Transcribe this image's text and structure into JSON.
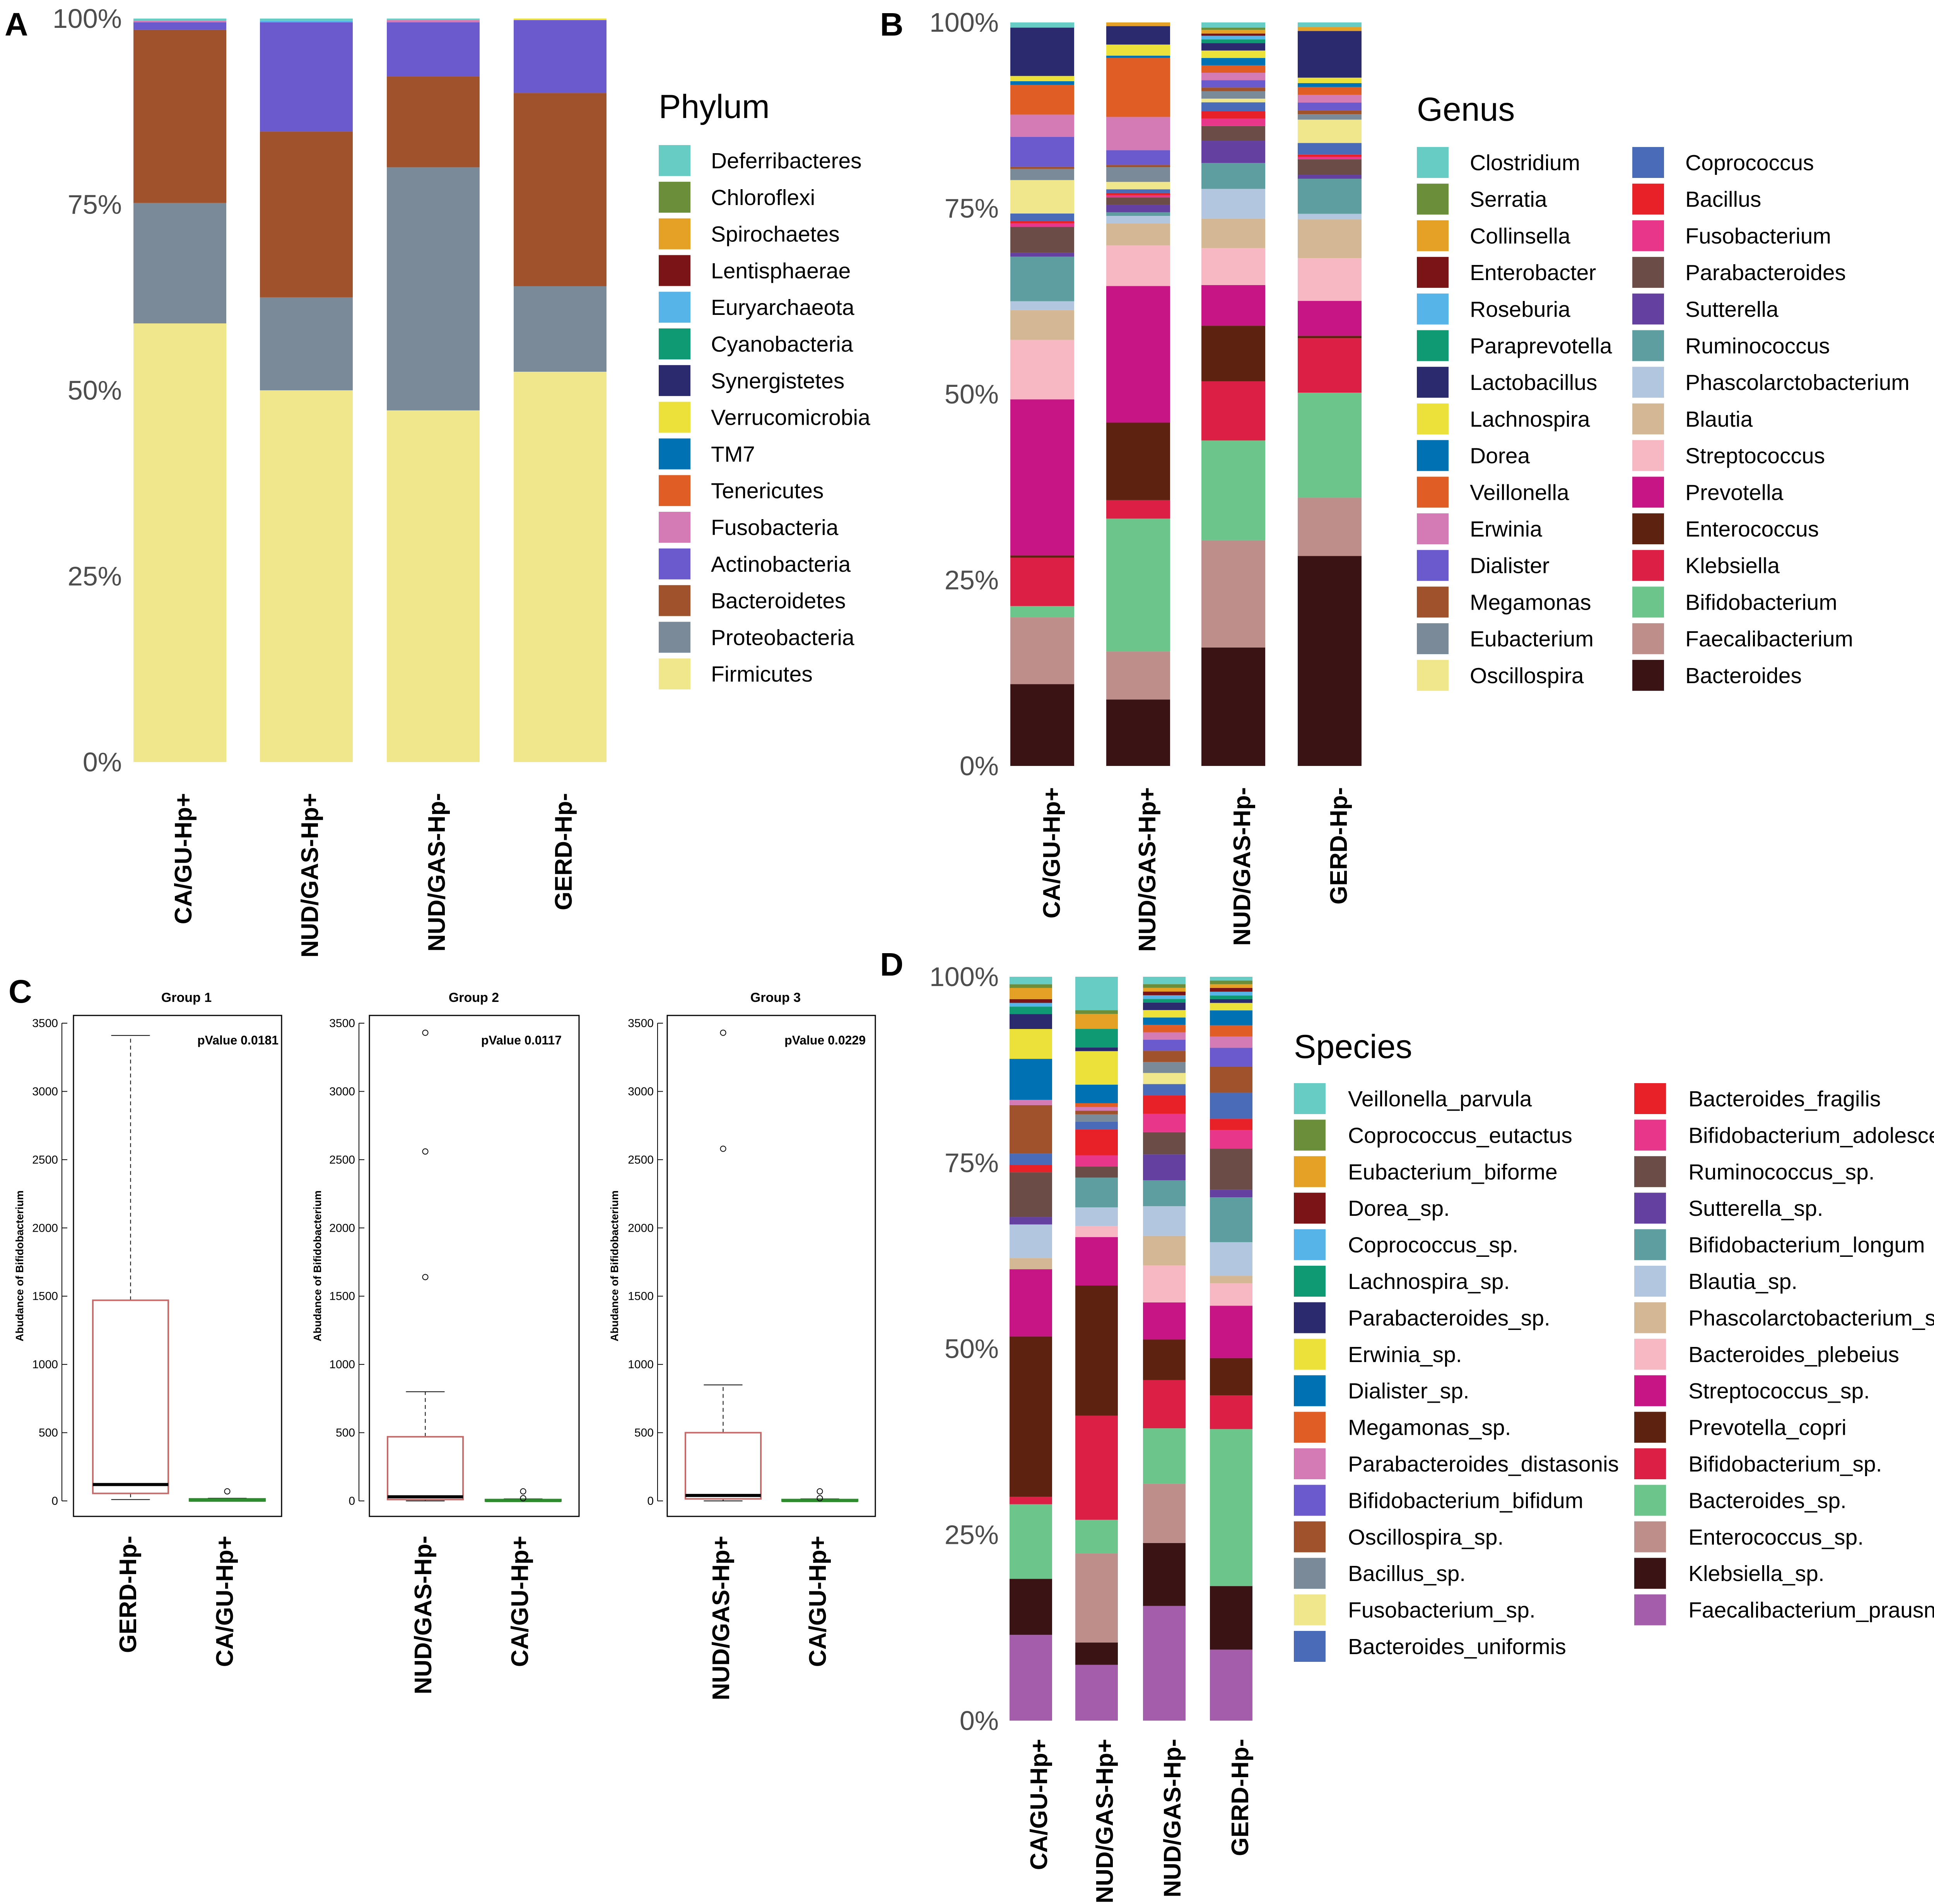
{
  "figure": {
    "labels": {
      "A": "A",
      "B": "B",
      "C": "C",
      "D": "D"
    }
  },
  "chart_data": [
    {
      "type": "bar",
      "stacked": true,
      "panel": "A",
      "legend_title": "Phylum",
      "categories": [
        "CA/GU-Hp+",
        "NUD/GAS-Hp+",
        "NUD/GAS-Hp-",
        "GERD-Hp-"
      ],
      "ylim": [
        0,
        100
      ],
      "yticks": [
        "0%",
        "25%",
        "50%",
        "75%",
        "100%"
      ],
      "series": [
        {
          "name": "Firmicutes",
          "color": "#F0E68C",
          "values": [
            59,
            50,
            47.3,
            52.5
          ]
        },
        {
          "name": "Proteobacteria",
          "color": "#7A8A98",
          "values": [
            16.2,
            12.5,
            32.7,
            11.5
          ]
        },
        {
          "name": "Bacteroidetes",
          "color": "#A0522D",
          "values": [
            23.3,
            22.3,
            12.2,
            26
          ]
        },
        {
          "name": "Actinobacteria",
          "color": "#6A5ACD",
          "values": [
            1,
            14.7,
            7.3,
            9.8
          ]
        },
        {
          "name": "Fusobacteria",
          "color": "#D47AB5",
          "values": [
            0.2,
            0,
            0.3,
            0
          ]
        },
        {
          "name": "Tenericutes",
          "color": "#E05E26",
          "values": [
            0,
            0,
            0,
            0
          ]
        },
        {
          "name": "TM7",
          "color": "#0071B2",
          "values": [
            0,
            0,
            0,
            0
          ]
        },
        {
          "name": "Verrucomicrobia",
          "color": "#EBE13A",
          "values": [
            0,
            0,
            0,
            0.2
          ]
        },
        {
          "name": "Synergistetes",
          "color": "#2C2A6E",
          "values": [
            0,
            0,
            0,
            0
          ]
        },
        {
          "name": "Cyanobacteria",
          "color": "#109A74",
          "values": [
            0,
            0,
            0,
            0
          ]
        },
        {
          "name": "Euryarchaeota",
          "color": "#56B4E9",
          "values": [
            0,
            0.2,
            0,
            0
          ]
        },
        {
          "name": "Lentisphaerae",
          "color": "#7B1416",
          "values": [
            0,
            0,
            0,
            0
          ]
        },
        {
          "name": "Spirochaetes",
          "color": "#E5A126",
          "values": [
            0,
            0,
            0,
            0
          ]
        },
        {
          "name": "Chloroflexi",
          "color": "#6B8E3A",
          "values": [
            0,
            0,
            0,
            0
          ]
        },
        {
          "name": "Deferribacteres",
          "color": "#66CCC4",
          "values": [
            0.3,
            0.3,
            0.2,
            0
          ]
        }
      ]
    },
    {
      "type": "bar",
      "stacked": true,
      "panel": "B",
      "legend_title": "Genus",
      "categories": [
        "CA/GU-Hp+",
        "NUD/GAS-Hp+",
        "NUD/GAS-Hp-",
        "GERD-Hp-"
      ],
      "ylim": [
        0,
        100
      ],
      "yticks": [
        "0%",
        "25%",
        "50%",
        "75%",
        "100%"
      ],
      "series": [
        {
          "name": "Bacteroides",
          "color": "#3A1414",
          "values": [
            11,
            9,
            16,
            27
          ]
        },
        {
          "name": "Faecalibacterium",
          "color": "#BE8E8A",
          "values": [
            9,
            6.5,
            14.5,
            7.5
          ]
        },
        {
          "name": "Bifidobacterium",
          "color": "#6CC58A",
          "values": [
            1.5,
            18,
            13.5,
            13.5
          ]
        },
        {
          "name": "Klebsiella",
          "color": "#DC1F44",
          "values": [
            6.5,
            2.5,
            8,
            7
          ]
        },
        {
          "name": "Enterococcus",
          "color": "#5E2210",
          "values": [
            0.3,
            10.5,
            7.5,
            0.3
          ]
        },
        {
          "name": "Prevotella",
          "color": "#C71585",
          "values": [
            21,
            18.5,
            5.5,
            4.5
          ]
        },
        {
          "name": "Streptococcus",
          "color": "#F7B8C4",
          "values": [
            8,
            5.5,
            5,
            5.5
          ]
        },
        {
          "name": "Blautia",
          "color": "#D4B896",
          "values": [
            4,
            3,
            4,
            5
          ]
        },
        {
          "name": "Phascolarctobacterium",
          "color": "#B3C6DF",
          "values": [
            1.2,
            1,
            4,
            0.7
          ]
        },
        {
          "name": "Ruminococcus",
          "color": "#5F9EA0",
          "values": [
            6,
            0.5,
            3.5,
            4.5
          ]
        },
        {
          "name": "Sutterella",
          "color": "#6440A0",
          "values": [
            0.5,
            1,
            3,
            0.5
          ]
        },
        {
          "name": "Parabacteroides",
          "color": "#6B4C46",
          "values": [
            3.5,
            1,
            2,
            2
          ]
        },
        {
          "name": "Fusobacterium",
          "color": "#E8368A",
          "values": [
            0.5,
            0.3,
            1,
            0.3
          ]
        },
        {
          "name": "Bacillus",
          "color": "#E82027",
          "values": [
            0.3,
            0.3,
            1,
            0.3
          ]
        },
        {
          "name": "Coprococcus",
          "color": "#4A6CB8",
          "values": [
            1,
            0.5,
            1.2,
            1.5
          ]
        },
        {
          "name": "Oscillospira",
          "color": "#F0E68C",
          "values": [
            4.5,
            1,
            0.5,
            3
          ]
        },
        {
          "name": "Eubacterium",
          "color": "#7A8A98",
          "values": [
            1.5,
            2,
            1,
            0.7
          ]
        },
        {
          "name": "Megamonas",
          "color": "#A0522D",
          "values": [
            0.3,
            0.3,
            0.5,
            0.5
          ]
        },
        {
          "name": "Dialister",
          "color": "#6A5ACD",
          "values": [
            4,
            2,
            1,
            1
          ]
        },
        {
          "name": "Erwinia",
          "color": "#D47AB5",
          "values": [
            3,
            4.5,
            1,
            1
          ]
        },
        {
          "name": "Veillonella",
          "color": "#E05E26",
          "values": [
            4,
            8,
            1,
            1
          ]
        },
        {
          "name": "Dorea",
          "color": "#0071B2",
          "values": [
            0.5,
            0.3,
            1,
            0.5
          ]
        },
        {
          "name": "Lachnospira",
          "color": "#EBE13A",
          "values": [
            0.7,
            1.5,
            1,
            0.7
          ]
        },
        {
          "name": "Lactobacillus",
          "color": "#2C2A6E",
          "values": [
            6.5,
            2.5,
            1,
            6
          ]
        },
        {
          "name": "Paraprevotella",
          "color": "#109A74",
          "values": [
            0,
            0,
            0.5,
            0
          ]
        },
        {
          "name": "Roseburia",
          "color": "#56B4E9",
          "values": [
            0,
            0,
            0.5,
            0
          ]
        },
        {
          "name": "Enterobacter",
          "color": "#7B1416",
          "values": [
            0,
            0,
            0.3,
            0
          ]
        },
        {
          "name": "Collinsella",
          "color": "#E5A126",
          "values": [
            0,
            0.5,
            0.5,
            0.5
          ]
        },
        {
          "name": "Serratia",
          "color": "#6B8E3A",
          "values": [
            0,
            0,
            0.3,
            0
          ]
        },
        {
          "name": "Clostridium",
          "color": "#66CCC4",
          "values": [
            0.7,
            0,
            0.7,
            0.6
          ]
        }
      ]
    },
    {
      "type": "box",
      "panel": "C",
      "ylabel": "Abudance of Bifidobacterium",
      "ylim": [
        0,
        3500
      ],
      "yticks": [
        0,
        500,
        1000,
        1500,
        2000,
        2500,
        3000,
        3500
      ],
      "groups": [
        {
          "title": "Group 1",
          "pvalue": "pValue 0.0181",
          "boxes": [
            {
              "label": "GERD-Hp-",
              "color": "#C86A6A",
              "min": 10,
              "q1": 55,
              "median": 120,
              "q3": 1470,
              "max": 3410,
              "outliers": []
            },
            {
              "label": "CA/GU-Hp+",
              "color": "#2E8B2E",
              "min": 0,
              "q1": 0,
              "median": 5,
              "q3": 15,
              "max": 20,
              "outliers": [
                70
              ]
            }
          ]
        },
        {
          "title": "Group 2",
          "pvalue": "pValue 0.0117",
          "boxes": [
            {
              "label": "NUD/GAS-Hp-",
              "color": "#C86A6A",
              "min": 0,
              "q1": 10,
              "median": 30,
              "q3": 470,
              "max": 800,
              "outliers": [
                1640,
                2560,
                3430
              ]
            },
            {
              "label": "CA/GU-Hp+",
              "color": "#2E8B2E",
              "min": 0,
              "q1": 0,
              "median": 3,
              "q3": 10,
              "max": 15,
              "outliers": [
                70,
                20
              ]
            }
          ]
        },
        {
          "title": "Group 3",
          "pvalue": "pValue 0.0229",
          "boxes": [
            {
              "label": "NUD/GAS-Hp+",
              "color": "#C86A6A",
              "min": 0,
              "q1": 15,
              "median": 40,
              "q3": 500,
              "max": 850,
              "outliers": [
                2580,
                3430
              ]
            },
            {
              "label": "CA/GU-Hp+",
              "color": "#2E8B2E",
              "min": 0,
              "q1": 0,
              "median": 3,
              "q3": 10,
              "max": 15,
              "outliers": [
                70,
                20
              ]
            }
          ]
        }
      ]
    },
    {
      "type": "bar",
      "stacked": true,
      "panel": "D",
      "legend_title": "Species",
      "categories": [
        "CA/GU-Hp+",
        "NUD/GAS-Hp+",
        "NUD/GAS-Hp-",
        "GERD-Hp-"
      ],
      "ylim": [
        0,
        100
      ],
      "yticks": [
        "0%",
        "25%",
        "50%",
        "75%",
        "100%"
      ],
      "series": [
        {
          "name": "Faecalibacterium_prausnitzii",
          "color": "#A35DAA",
          "values": [
            11.5,
            7.5,
            15.5,
            9.5
          ]
        },
        {
          "name": "Klebsiella_sp.",
          "color": "#3A1414",
          "values": [
            7.5,
            3,
            8.5,
            8.5
          ]
        },
        {
          "name": "Enterococcus_sp.",
          "color": "#BE8E8A",
          "values": [
            0,
            12,
            8,
            0
          ]
        },
        {
          "name": "Bacteroides_sp.",
          "color": "#6CC58A",
          "values": [
            10,
            4.5,
            7.5,
            21
          ]
        },
        {
          "name": "Bifidobacterium_sp.",
          "color": "#DC1F44",
          "values": [
            1,
            14,
            6.5,
            4.5
          ]
        },
        {
          "name": "Prevotella_copri",
          "color": "#5E2210",
          "values": [
            21.5,
            17.5,
            5.5,
            5
          ]
        },
        {
          "name": "Streptococcus_sp.",
          "color": "#C71585",
          "values": [
            9,
            6.5,
            5,
            7
          ]
        },
        {
          "name": "Bacteroides_plebeius",
          "color": "#F7B8C4",
          "values": [
            0,
            1.5,
            5,
            3
          ]
        },
        {
          "name": "Phascolarctobacterium_sp.",
          "color": "#D4B896",
          "values": [
            1.5,
            0,
            4,
            1
          ]
        },
        {
          "name": "Blautia_sp.",
          "color": "#B3C6DF",
          "values": [
            4.5,
            2.5,
            4,
            4.5
          ]
        },
        {
          "name": "Bifidobacterium_longum",
          "color": "#5F9EA0",
          "values": [
            0,
            4,
            3.5,
            6
          ]
        },
        {
          "name": "Sutterella_sp.",
          "color": "#6440A0",
          "values": [
            1,
            0,
            3.5,
            1
          ]
        },
        {
          "name": "Ruminococcus_sp.",
          "color": "#6B4C46",
          "values": [
            6,
            1.5,
            3,
            5.5
          ]
        },
        {
          "name": "Bifidobacterium_adolescentis",
          "color": "#E8368A",
          "values": [
            0,
            1.5,
            2.5,
            2.5
          ]
        },
        {
          "name": "Bacteroides_fragilis",
          "color": "#E82027",
          "values": [
            1,
            3.5,
            2.5,
            1.5
          ]
        },
        {
          "name": "Bacteroides_uniformis",
          "color": "#4A6CB8",
          "values": [
            1.5,
            1,
            1.5,
            3.5
          ]
        },
        {
          "name": "Fusobacterium_sp.",
          "color": "#F0E68C",
          "values": [
            0,
            0,
            1.5,
            0
          ]
        },
        {
          "name": "Bacillus_sp.",
          "color": "#7A8A98",
          "values": [
            0,
            1,
            1.5,
            0
          ]
        },
        {
          "name": "Oscillospira_sp.",
          "color": "#A0522D",
          "values": [
            6.5,
            0.5,
            1.5,
            3.5
          ]
        },
        {
          "name": "Bifidobacterium_bifidum",
          "color": "#6A5ACD",
          "values": [
            0,
            0,
            1.5,
            2.5
          ]
        },
        {
          "name": "Parabacteroides_distasonis",
          "color": "#D47AB5",
          "values": [
            0.7,
            0.5,
            1,
            1.5
          ]
        },
        {
          "name": "Megamonas_sp.",
          "color": "#E05E26",
          "values": [
            0,
            0.5,
            1,
            1.5
          ]
        },
        {
          "name": "Dialister_sp.",
          "color": "#0071B2",
          "values": [
            5.5,
            2.5,
            1,
            2
          ]
        },
        {
          "name": "Erwinia_sp.",
          "color": "#EBE13A",
          "values": [
            4,
            4.5,
            1,
            1
          ]
        },
        {
          "name": "Parabacteroides_sp.",
          "color": "#2C2A6E",
          "values": [
            2,
            0.5,
            1,
            0.5
          ]
        },
        {
          "name": "Lachnospira_sp.",
          "color": "#109A74",
          "values": [
            1,
            2.5,
            0.5,
            0.5
          ]
        },
        {
          "name": "Coprococcus_sp.",
          "color": "#56B4E9",
          "values": [
            0.5,
            0,
            0.5,
            0.5
          ]
        },
        {
          "name": "Dorea_sp.",
          "color": "#7B1416",
          "values": [
            0.5,
            0,
            0.5,
            0.5
          ]
        },
        {
          "name": "Eubacterium_biforme",
          "color": "#E5A126",
          "values": [
            1.5,
            2,
            0.5,
            0.5
          ]
        },
        {
          "name": "Coprococcus_eutactus",
          "color": "#6B8E3A",
          "values": [
            0.5,
            0.5,
            0.5,
            0.5
          ]
        },
        {
          "name": "Veillonella_parvula",
          "color": "#66CCC4",
          "values": [
            1,
            4.5,
            1,
            0.5
          ]
        }
      ]
    }
  ]
}
